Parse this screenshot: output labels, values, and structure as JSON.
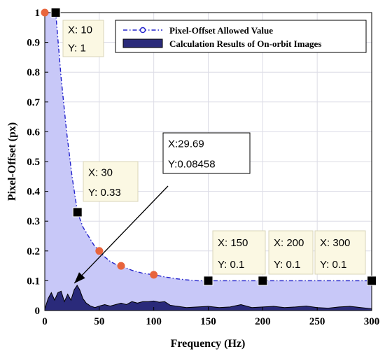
{
  "chart_data": {
    "type": "area",
    "xlabel": "Frequency (Hz)",
    "ylabel": "Pixel-Offset (px)",
    "xlim": [
      0,
      300
    ],
    "ylim": [
      0,
      1
    ],
    "xticks": [
      0,
      50,
      100,
      150,
      200,
      250,
      300
    ],
    "xtick_labels": [
      "0",
      "50",
      "100",
      "150",
      "200",
      "250",
      "300"
    ],
    "yticks": [
      0,
      0.1,
      0.2,
      0.3,
      0.4,
      0.5,
      0.6,
      0.7,
      0.8,
      0.9,
      1
    ],
    "ytick_labels": [
      "0",
      "0.1",
      "0.2",
      "0.3",
      "0.4",
      "0.5",
      "0.6",
      "0.7",
      "0.8",
      "0.9",
      "1"
    ],
    "grid": true,
    "legend_position": "top-right",
    "series": [
      {
        "name": "Pixel-Offset Allowed Value",
        "style": "dash-dot line with markers and light fill",
        "color": "#2222cc",
        "fill_color": "#c8c8f8",
        "x": [
          0,
          5,
          10,
          15,
          20,
          25,
          30,
          35,
          40,
          45,
          50,
          55,
          60,
          65,
          70,
          80,
          90,
          100,
          110,
          120,
          130,
          140,
          150,
          200,
          250,
          300
        ],
        "y": [
          1,
          1,
          1,
          0.78,
          0.6,
          0.45,
          0.33,
          0.28,
          0.25,
          0.22,
          0.2,
          0.18,
          0.165,
          0.155,
          0.15,
          0.135,
          0.125,
          0.12,
          0.113,
          0.107,
          0.103,
          0.1,
          0.1,
          0.1,
          0.1,
          0.1
        ]
      },
      {
        "name": "Calculation Results of On-orbit Images",
        "style": "filled area",
        "color": "#000000",
        "fill_color": "#2a2a7a",
        "x": [
          0,
          3,
          6,
          9,
          12,
          15,
          18,
          21,
          24,
          27,
          29.69,
          32,
          35,
          38,
          42,
          46,
          50,
          55,
          60,
          65,
          70,
          75,
          80,
          85,
          90,
          95,
          100,
          105,
          110,
          115,
          120,
          130,
          140,
          150,
          160,
          170,
          180,
          190,
          200,
          210,
          220,
          230,
          240,
          250,
          260,
          270,
          280,
          290,
          300
        ],
        "y": [
          0.005,
          0.04,
          0.06,
          0.035,
          0.06,
          0.065,
          0.03,
          0.055,
          0.035,
          0.07,
          0.08458,
          0.07,
          0.04,
          0.025,
          0.015,
          0.01,
          0.015,
          0.02,
          0.015,
          0.02,
          0.025,
          0.02,
          0.03,
          0.025,
          0.03,
          0.03,
          0.032,
          0.028,
          0.03,
          0.018,
          0.015,
          0.01,
          0.012,
          0.014,
          0.01,
          0.012,
          0.02,
          0.01,
          0.012,
          0.014,
          0.01,
          0.012,
          0.015,
          0.01,
          0.008,
          0.012,
          0.014,
          0.01,
          0.006
        ]
      }
    ],
    "markers": {
      "circles": {
        "color": "#e8643c",
        "points": [
          [
            0,
            1
          ],
          [
            50,
            0.2
          ],
          [
            70,
            0.15
          ],
          [
            100,
            0.12
          ]
        ]
      },
      "squares": {
        "color": "#000000",
        "points": [
          [
            10,
            1
          ],
          [
            30,
            0.33
          ],
          [
            150,
            0.1
          ],
          [
            200,
            0.1
          ],
          [
            300,
            0.1
          ]
        ]
      }
    },
    "datatips": [
      {
        "lines": [
          "X: 10",
          "Y: 1"
        ]
      },
      {
        "lines": [
          "X: 30",
          "Y: 0.33"
        ]
      },
      {
        "lines": [
          "X:29.69",
          "Y:0.08458"
        ]
      },
      {
        "lines": [
          "X: 150",
          "Y: 0.1"
        ]
      },
      {
        "lines": [
          "X: 200",
          "Y: 0.1"
        ]
      },
      {
        "lines": [
          "X: 300",
          "Y: 0.1"
        ]
      }
    ]
  }
}
